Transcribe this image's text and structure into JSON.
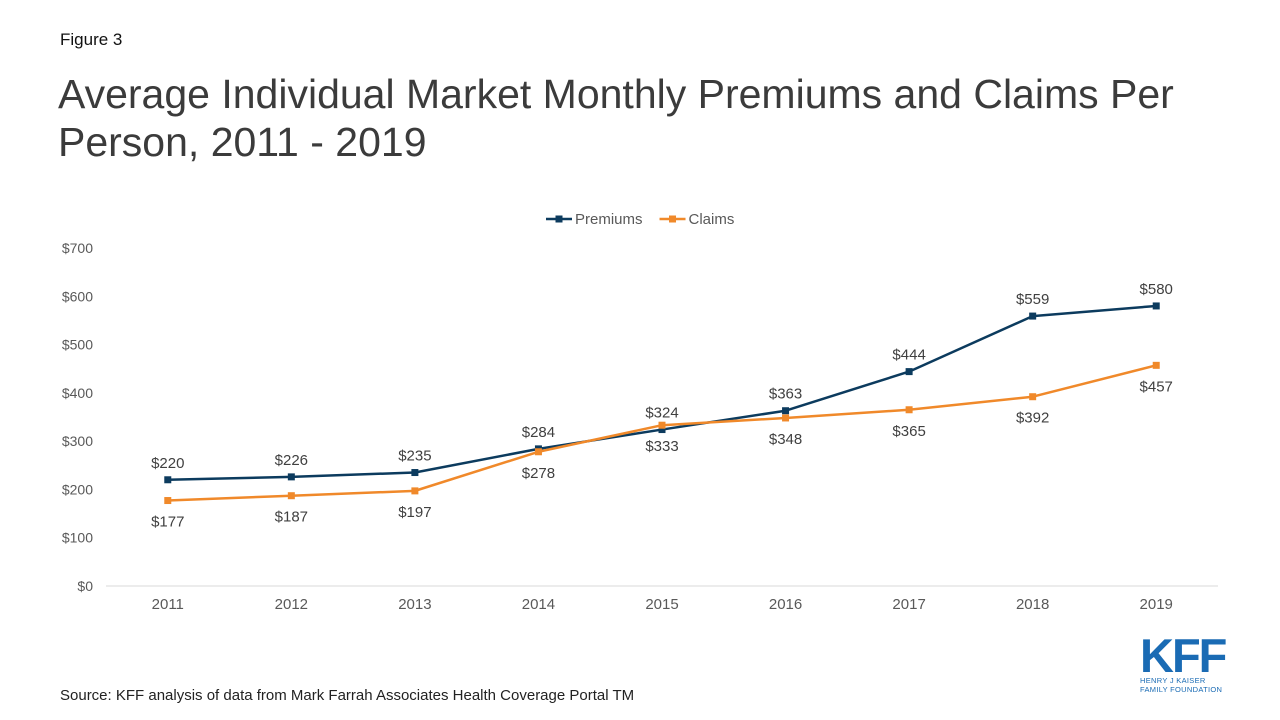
{
  "figure_label": "Figure 3",
  "title": "Average Individual Market Monthly Premiums and Claims Per Person, 2011 - 2019",
  "source": "Source: KFF analysis of data from Mark Farrah Associates Health Coverage Portal TM",
  "logo": {
    "mark": "KFF",
    "line1": "HENRY J KAISER",
    "line2": "FAMILY FOUNDATION",
    "color": "#1a6bb4"
  },
  "chart_data": {
    "type": "line",
    "x": [
      "2011",
      "2012",
      "2013",
      "2014",
      "2015",
      "2016",
      "2017",
      "2018",
      "2019"
    ],
    "series": [
      {
        "name": "Premiums",
        "color": "#0c3b5e",
        "values": [
          220,
          226,
          235,
          284,
          324,
          363,
          444,
          559,
          580
        ],
        "labels": [
          "$220",
          "$226",
          "$235",
          "$284",
          "$324",
          "$363",
          "$444",
          "$559",
          "$580"
        ],
        "label_position": [
          "above",
          "above",
          "above",
          "above",
          "above",
          "above",
          "above",
          "above",
          "above"
        ]
      },
      {
        "name": "Claims",
        "color": "#f0892a",
        "values": [
          177,
          187,
          197,
          278,
          333,
          348,
          365,
          392,
          457
        ],
        "labels": [
          "$177",
          "$187",
          "$197",
          "$278",
          "$333",
          "$348",
          "$365",
          "$392",
          "$457"
        ],
        "label_position": [
          "below",
          "below",
          "below",
          "below",
          "below",
          "below",
          "below",
          "below",
          "below"
        ]
      }
    ],
    "ylim": [
      0,
      700
    ],
    "yticks": [
      0,
      100,
      200,
      300,
      400,
      500,
      600,
      700
    ],
    "ytick_labels": [
      "$0",
      "$100",
      "$200",
      "$300",
      "$400",
      "$500",
      "$600",
      "$700"
    ],
    "grid": false,
    "legend_position": "top-center"
  }
}
